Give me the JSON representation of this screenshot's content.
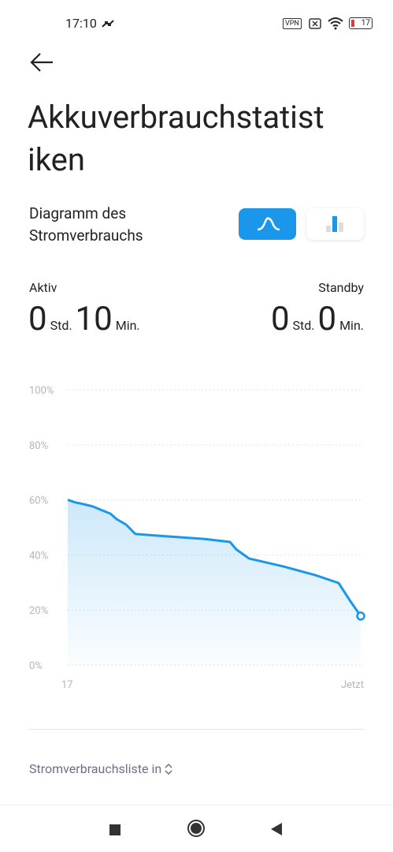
{
  "status_bar": {
    "time": "17:10",
    "vpn": "VPN",
    "battery": "17"
  },
  "header": {
    "title_lines": [
      "Akkuverbrauchstatist",
      "iken"
    ]
  },
  "diagram_toggle": {
    "label": "Diagramm des Stromverbrauchs"
  },
  "stats": {
    "active": {
      "label": "Aktiv",
      "hours": "0",
      "hours_unit": "Std.",
      "minutes": "10",
      "minutes_unit": "Min."
    },
    "standby": {
      "label": "Standby",
      "hours": "0",
      "hours_unit": "Std.",
      "minutes": "0",
      "minutes_unit": "Min."
    }
  },
  "chart_data": {
    "type": "line",
    "x": [
      17,
      17.004,
      17.0085,
      17.0143,
      17.0188,
      17.0242,
      17.0278,
      17.0332,
      17.0385,
      17.0511,
      17.078,
      17.0923,
      17.0959,
      17.1031,
      17.1228,
      17.1407,
      17.1541,
      17.1608,
      17.1667
    ],
    "series": [
      {
        "color": "#1a97ea",
        "values": [
          60,
          59.1,
          58.5,
          57.6,
          56.4,
          55,
          53,
          51,
          47.6,
          47,
          45.8,
          44.7,
          42,
          38.7,
          35.8,
          32.7,
          29.8,
          23.2,
          17.8
        ]
      }
    ],
    "xlim": [
      17,
      17.1667
    ],
    "xticks": [
      {
        "value": 17,
        "label": "17"
      },
      {
        "value": 17.1667,
        "label": "Jetzt"
      }
    ],
    "ylim": [
      0,
      100
    ],
    "yticks": [
      {
        "value": 0,
        "label": "0%"
      },
      {
        "value": 20,
        "label": "20%"
      },
      {
        "value": 40,
        "label": "40%"
      },
      {
        "value": 60,
        "label": "60%"
      },
      {
        "value": 80,
        "label": "80%"
      },
      {
        "value": 100,
        "label": "100%"
      }
    ],
    "grid": true
  },
  "footer": {
    "list_label": "Stromverbrauchsliste in"
  }
}
